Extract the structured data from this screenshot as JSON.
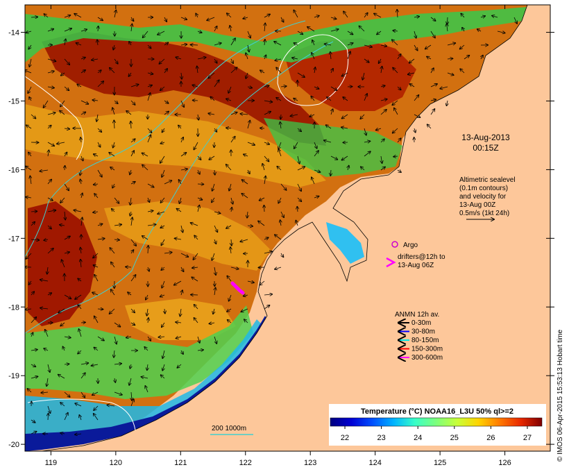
{
  "timestamp": {
    "date": "13-Aug-2013",
    "time": "00:15Z"
  },
  "altimetry_note": [
    "Altimetric sealevel",
    "(0.1m contours)",
    "and velocity for",
    "13-Aug 00Z",
    "0.5m/s (1kt 24h)"
  ],
  "argo_label": "Argo",
  "drifters_note": [
    "drifters@12h to",
    "13-Aug 06Z"
  ],
  "anmn": {
    "title": "ANMN 12h av.",
    "items": [
      {
        "label": "0-30m",
        "color": "#000000"
      },
      {
        "label": "30-80m",
        "color": "#0000ff"
      },
      {
        "label": "80-150m",
        "color": "#00e5e5"
      },
      {
        "label": "150-300m",
        "color": "#ff0000"
      },
      {
        "label": "300-600m",
        "color": "#ff00ff"
      }
    ]
  },
  "colorbar": {
    "title": "Temperature (°C) NOAA16_L3U 50% ql>=2",
    "ticks": [
      "22",
      "23",
      "24",
      "25",
      "26",
      "27"
    ],
    "range": [
      21.6,
      27.4
    ],
    "colors": [
      "#00007f",
      "#0000d4",
      "#0050ff",
      "#00b4ff",
      "#38ffc8",
      "#7cff7c",
      "#c8ff38",
      "#ffd400",
      "#ff7a00",
      "#e82800",
      "#7f0000"
    ]
  },
  "depth_contours_label": "200  1000m",
  "credit": "© IMOS 06-Apr-2015 15:53:13 Hobart time",
  "axes": {
    "x_ticks": [
      "119",
      "120",
      "121",
      "122",
      "123",
      "124",
      "125",
      "126"
    ],
    "y_ticks": [
      "-14",
      "-15",
      "-16",
      "-17",
      "-18",
      "-19",
      "-20"
    ],
    "lon_range": [
      118.6,
      126.7
    ],
    "lat_range": [
      -13.6,
      -20.1
    ]
  },
  "palette": {
    "land": "#fdc79a",
    "sea_warm": "#c85a00",
    "sea_hot": "#a01800",
    "sea_mid": "#e8a018",
    "sea_cool": "#30c850",
    "sea_cold": "#0a1a9a",
    "contour": "#40d0d0"
  }
}
